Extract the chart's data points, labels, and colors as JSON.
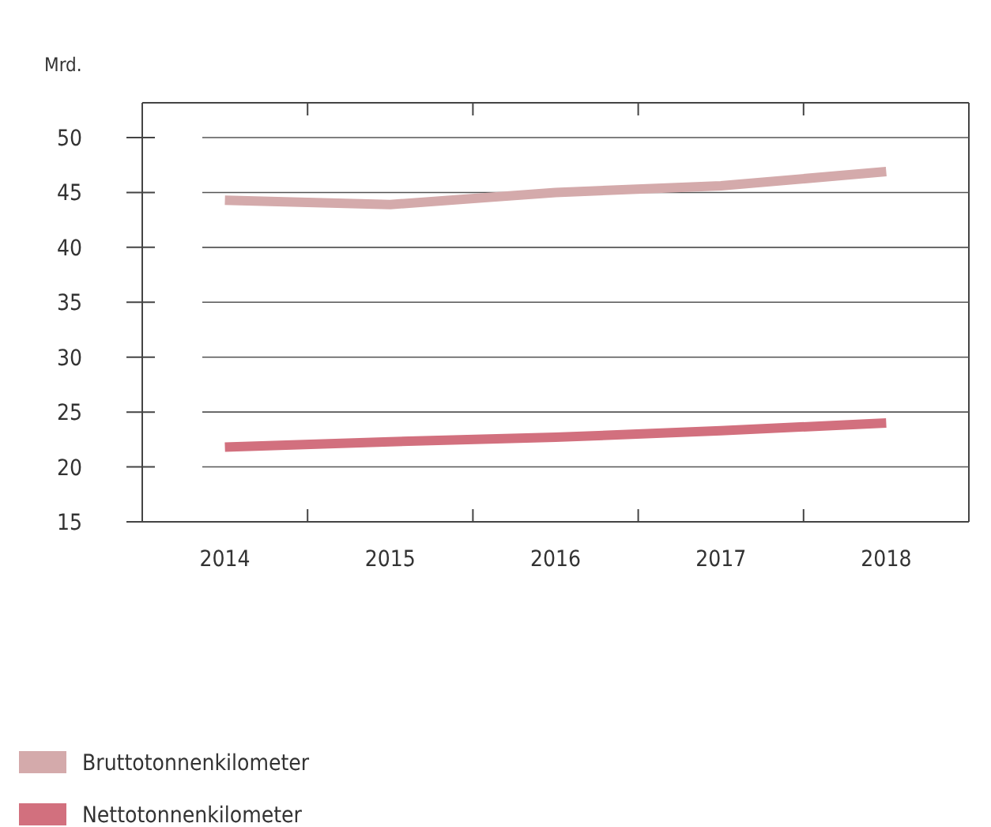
{
  "chart_data": {
    "type": "line",
    "ylabel": "Mrd.",
    "categories": [
      "2014",
      "2015",
      "2016",
      "2017",
      "2018"
    ],
    "series": [
      {
        "name": "Bruttotonnenkilometer",
        "color": "#d4aaab",
        "values": [
          44.3,
          43.9,
          45.0,
          45.6,
          46.9
        ]
      },
      {
        "name": "Nettotonnenkilometer",
        "color": "#d2707e",
        "values": [
          21.8,
          22.3,
          22.7,
          23.3,
          24.0
        ]
      }
    ],
    "ylim": [
      15,
      50
    ],
    "yticks": [
      15,
      20,
      25,
      30,
      35,
      40,
      45,
      50
    ],
    "grid": "y",
    "legend": "bottom left",
    "line_style": "solid",
    "marker": "none"
  }
}
